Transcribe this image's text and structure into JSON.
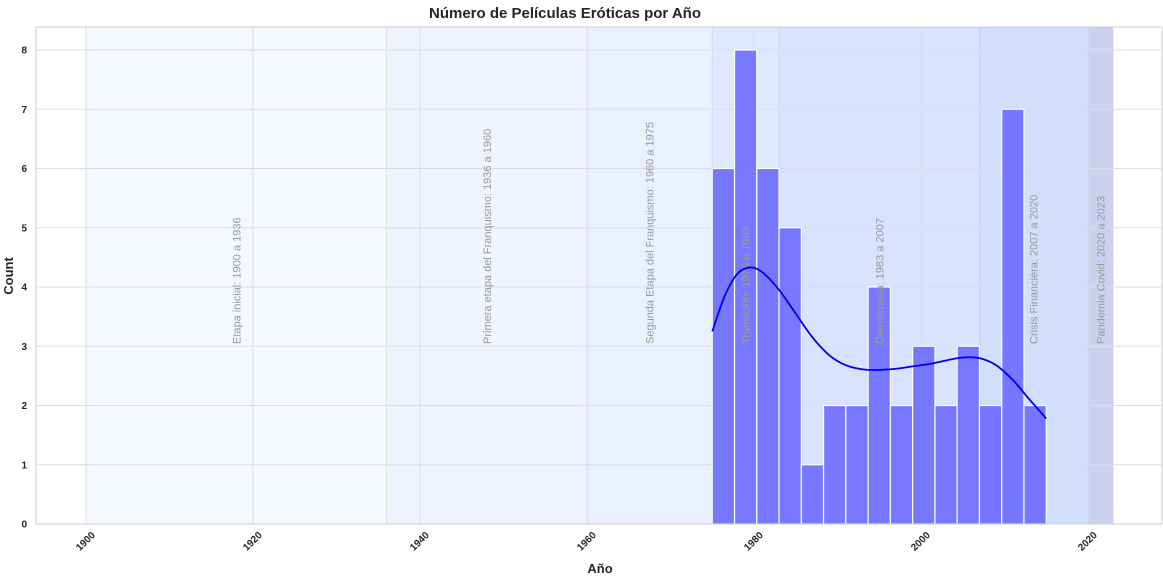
{
  "chart_data": {
    "type": "bar",
    "title": "Número de Películas Eróticas por Año",
    "xlabel": "Año",
    "ylabel": "Count",
    "xlim": [
      1891,
      1999.5
    ],
    "ylim": [
      0,
      8.3
    ],
    "xticks": [
      1900,
      1920,
      1940,
      1960,
      1980,
      2000,
      2020
    ],
    "yticks": [
      0,
      1,
      2,
      3,
      4,
      5,
      6,
      7,
      8
    ],
    "grid": true,
    "bar_color": "#6b6bff",
    "kde_color": "#0000ee",
    "bins": [
      {
        "x0": 1975.0,
        "x1": 1977.67,
        "value": 6
      },
      {
        "x0": 1977.67,
        "x1": 1980.33,
        "value": 8
      },
      {
        "x0": 1980.33,
        "x1": 1983.0,
        "value": 6
      },
      {
        "x0": 1983.0,
        "x1": 1985.67,
        "value": 5
      },
      {
        "x0": 1985.67,
        "x1": 1988.33,
        "value": 1
      },
      {
        "x0": 1988.33,
        "x1": 1991.0,
        "value": 2
      },
      {
        "x0": 1991.0,
        "x1": 1993.67,
        "value": 2
      },
      {
        "x0": 1993.67,
        "x1": 1996.33,
        "value": 4
      },
      {
        "x0": 1996.33,
        "x1": 1999.0,
        "value": 2
      },
      {
        "x0": 1999.0,
        "x1": 2001.67,
        "value": 3
      },
      {
        "x0": 2001.67,
        "x1": 2004.33,
        "value": 2
      },
      {
        "x0": 2004.33,
        "x1": 2007.0,
        "value": 3
      },
      {
        "x0": 2007.0,
        "x1": 2009.67,
        "value": 2
      },
      {
        "x0": 2009.67,
        "x1": 2012.33,
        "value": 7
      },
      {
        "x0": 2012.33,
        "x1": 2015.0,
        "value": 2
      }
    ],
    "kde": [
      {
        "x": 1975.0,
        "y": 3.25
      },
      {
        "x": 1976.5,
        "y": 3.85
      },
      {
        "x": 1978.0,
        "y": 4.22
      },
      {
        "x": 1979.5,
        "y": 4.33
      },
      {
        "x": 1981.0,
        "y": 4.25
      },
      {
        "x": 1983.0,
        "y": 3.95
      },
      {
        "x": 1985.0,
        "y": 3.55
      },
      {
        "x": 1987.0,
        "y": 3.15
      },
      {
        "x": 1989.0,
        "y": 2.85
      },
      {
        "x": 1991.0,
        "y": 2.68
      },
      {
        "x": 1993.0,
        "y": 2.61
      },
      {
        "x": 1995.0,
        "y": 2.6
      },
      {
        "x": 1997.0,
        "y": 2.62
      },
      {
        "x": 1999.0,
        "y": 2.66
      },
      {
        "x": 2001.0,
        "y": 2.7
      },
      {
        "x": 2003.0,
        "y": 2.76
      },
      {
        "x": 2005.0,
        "y": 2.81
      },
      {
        "x": 2007.0,
        "y": 2.8
      },
      {
        "x": 2009.0,
        "y": 2.68
      },
      {
        "x": 2011.0,
        "y": 2.43
      },
      {
        "x": 2013.0,
        "y": 2.1
      },
      {
        "x": 2015.0,
        "y": 1.78
      }
    ],
    "eras": [
      {
        "start": 1900,
        "end": 1936,
        "label": "Etapa inicial: 1900 a 1936",
        "color": "#eef3ff",
        "opacity": 0.6
      },
      {
        "start": 1936,
        "end": 1960,
        "label": "Primera etapa del Franquismo: 1936 a 1960",
        "color": "#e8f0ff",
        "opacity": 0.7
      },
      {
        "start": 1960,
        "end": 1975,
        "label": "Segunda Etapa del Franquismo: 1960 a 1975",
        "color": "#e3ecff",
        "opacity": 0.8
      },
      {
        "start": 1975,
        "end": 1983,
        "label": "Transición: 1975 a 1983",
        "color": "#d6e4ff",
        "opacity": 0.8
      },
      {
        "start": 1983,
        "end": 2007,
        "label": "Democracia: 1983 a 2007",
        "color": "#cfdcff",
        "opacity": 0.8
      },
      {
        "start": 2007,
        "end": 2020,
        "label": "Crisis Financiera: 2007 a 2020",
        "color": "#c6d6fb",
        "opacity": 0.8
      },
      {
        "start": 2020,
        "end": 2023,
        "label": "Pandemia Covid: 2020 a 2023",
        "color": "#b8c3ea",
        "opacity": 0.75
      }
    ]
  }
}
